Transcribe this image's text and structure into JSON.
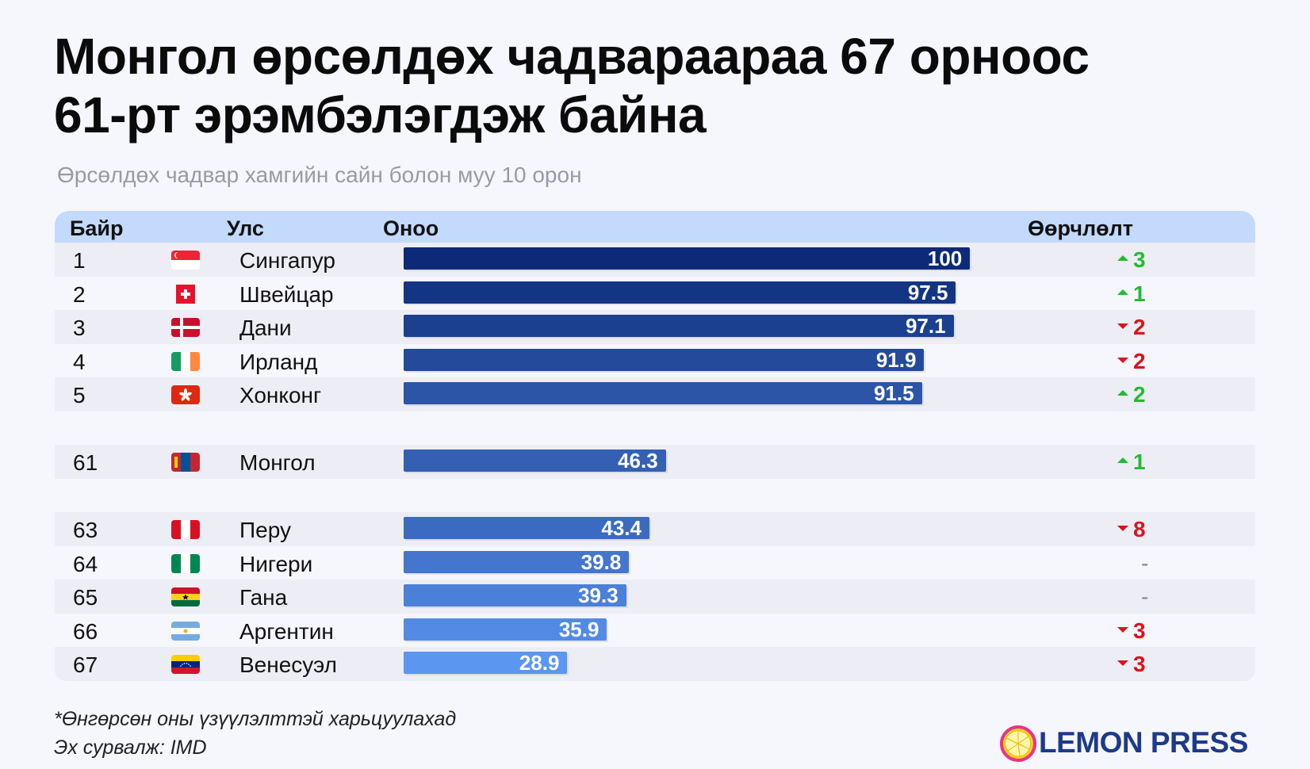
{
  "title_line1": "Монгол өрсөлдөх чадвараараа 67 орноос",
  "title_line2": "61-рт эрэмбэлэгдэж байна",
  "subtitle": "Өрсөлдөх чадвар хамгийн сайн болон муу 10 орон",
  "headers": {
    "rank": "Байр",
    "country": "Улс",
    "score": "Оноо",
    "change": "Өөрчлөлт"
  },
  "footnote": "*Өнгөрсөн оны үзүүлэлттэй харьцуулахад",
  "source": "Эх сурвалж: IMD",
  "logo": "LEMON PRESS",
  "colors": {
    "up": "#22bb33",
    "down": "#d9141b",
    "bar_dark": "#0c2a78",
    "bar_light": "#5b96f0"
  },
  "chart_data": {
    "type": "bar",
    "orientation": "horizontal",
    "xlim": [
      0,
      105
    ],
    "rows": [
      {
        "rank": "1",
        "country": "Сингапур",
        "flag": "singapore-flag",
        "value": 100,
        "label": "100",
        "change": "3",
        "dir": "up"
      },
      {
        "rank": "2",
        "country": "Швейцар",
        "flag": "switzerland-flag",
        "value": 97.5,
        "label": "97.5",
        "change": "1",
        "dir": "up"
      },
      {
        "rank": "3",
        "country": "Дани",
        "flag": "denmark-flag",
        "value": 97.1,
        "label": "97.1",
        "change": "2",
        "dir": "down"
      },
      {
        "rank": "4",
        "country": "Ирланд",
        "flag": "ireland-flag",
        "value": 91.9,
        "label": "91.9",
        "change": "2",
        "dir": "down"
      },
      {
        "rank": "5",
        "country": "Хонконг",
        "flag": "hongkong-flag",
        "value": 91.5,
        "label": "91.5",
        "change": "2",
        "dir": "up"
      },
      {
        "gap": true
      },
      {
        "rank": "61",
        "country": "Монгол",
        "flag": "mongolia-flag",
        "value": 46.3,
        "label": "46.3",
        "change": "1",
        "dir": "up"
      },
      {
        "gap": true
      },
      {
        "rank": "63",
        "country": "Перу",
        "flag": "peru-flag",
        "value": 43.4,
        "label": "43.4",
        "change": "8",
        "dir": "down"
      },
      {
        "rank": "64",
        "country": "Нигери",
        "flag": "nigeria-flag",
        "value": 39.8,
        "label": "39.8",
        "change": "-",
        "dir": "none"
      },
      {
        "rank": "65",
        "country": "Гана",
        "flag": "ghana-flag",
        "value": 39.3,
        "label": "39.3",
        "change": "-",
        "dir": "none"
      },
      {
        "rank": "66",
        "country": "Аргентин",
        "flag": "argentina-flag",
        "value": 35.9,
        "label": "35.9",
        "change": "3",
        "dir": "down"
      },
      {
        "rank": "67",
        "country": "Венесуэл",
        "flag": "venezuela-flag",
        "value": 28.9,
        "label": "28.9",
        "change": "3",
        "dir": "down"
      }
    ]
  }
}
